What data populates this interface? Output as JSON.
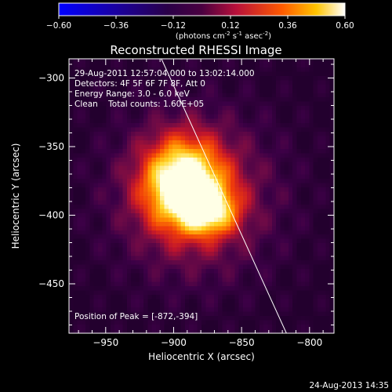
{
  "chart_data": {
    "type": "heatmap",
    "title": "Reconstructed RHESSI Image",
    "xlabel": "Heliocentric X (arcsec)",
    "ylabel": "Heliocentric Y (arcsec)",
    "xlim": [
      -977,
      -782
    ],
    "ylim": [
      -486,
      -286
    ],
    "x_ticks": [
      -950,
      -900,
      -850,
      -800
    ],
    "y_ticks": [
      -300,
      -350,
      -400,
      -450
    ],
    "colorbar": {
      "min": -0.6,
      "max": 0.6,
      "ticks": [
        "-0.60",
        "-0.36",
        "-0.12",
        "0.12",
        "0.36",
        "0.60"
      ],
      "units_prefix": "(photons cm",
      "units_exp1": "-2",
      "units_mid": " s",
      "units_exp2": "-1",
      "units_mid2": " asec",
      "units_exp3": "-2",
      "units_suffix": ")"
    },
    "info_lines": [
      "29-Aug-2011 12:57:04.000 to 13:02:14.000",
      "Detectors: 4F 5F 6F 7F 8F, Att 0",
      "Energy Range: 3.0 - 6.0 keV",
      "Clean    Total counts: 1.60E+05"
    ],
    "peak_label": "Position of Peak = [-872,-394]",
    "peak": {
      "x": -872,
      "y": -394,
      "value": 0.6
    },
    "source_blobs": [
      {
        "x": -893,
        "y": -377,
        "sx": 20,
        "sy": 22,
        "amp": 0.95
      },
      {
        "x": -873,
        "y": -397,
        "sx": 14,
        "sy": 12,
        "amp": 0.55
      },
      {
        "x": -884,
        "y": -386,
        "sx": 42,
        "sy": 42,
        "amp": 0.38
      }
    ],
    "limb_line": [
      [
        -909,
        -286
      ],
      [
        -817,
        -486
      ]
    ],
    "timestamp": "24-Aug-2013 14:35"
  }
}
